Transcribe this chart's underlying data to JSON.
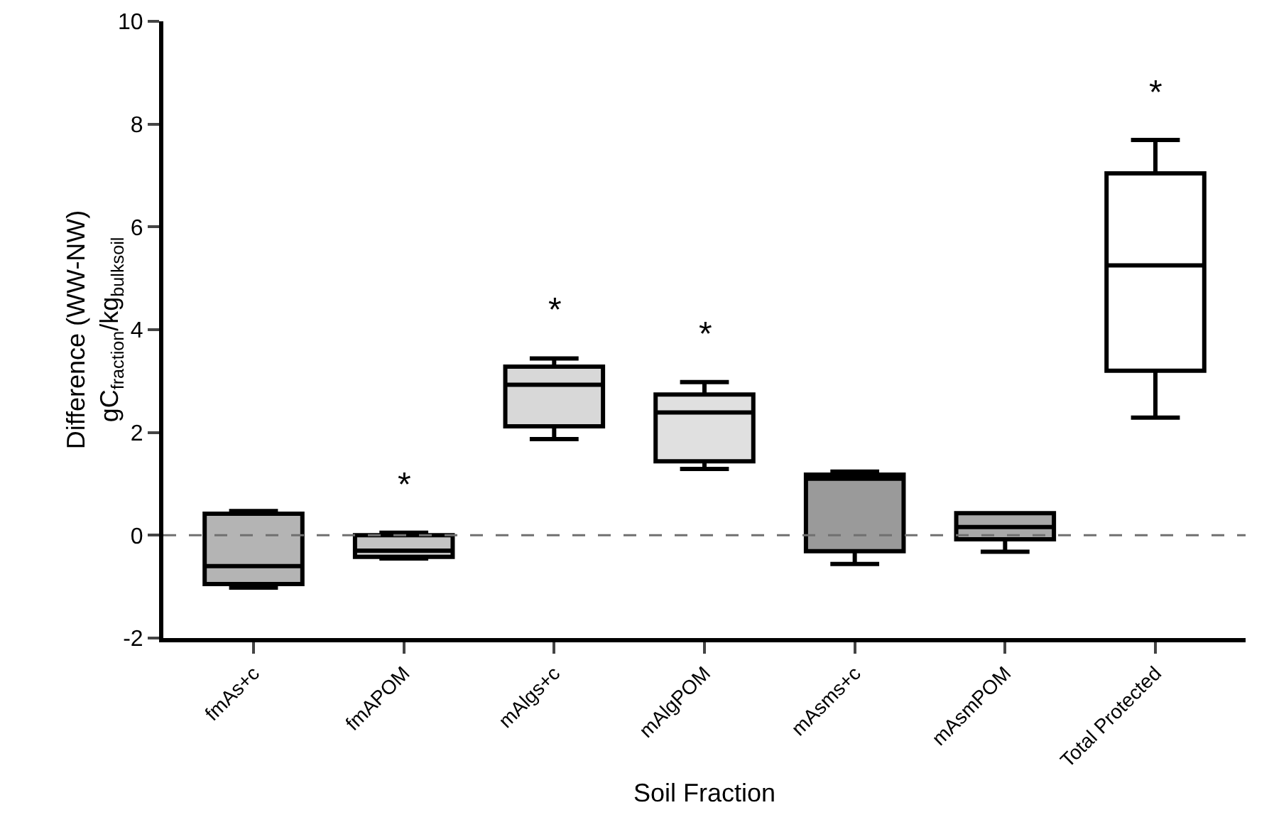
{
  "chart_data": {
    "type": "box",
    "xlabel": "Soil Fraction",
    "ylabel": "Difference (WW-NW)\ngC$_{fraction}$/kg$_{bulksoil}$",
    "categories": [
      "fmAs+c",
      "fmAPOM",
      "mAlgs+c",
      "mAlgPOM",
      "mAsms+c",
      "mAsmPOM",
      "Total Protected"
    ],
    "boxes": [
      {
        "low": -1.02,
        "q1": -0.95,
        "median": -0.6,
        "q3": 0.42,
        "high": 0.47
      },
      {
        "low": -0.45,
        "q1": -0.42,
        "median": -0.3,
        "q3": 0.0,
        "high": 0.05
      },
      {
        "low": 1.87,
        "q1": 2.12,
        "median": 2.93,
        "q3": 3.28,
        "high": 3.44
      },
      {
        "low": 1.29,
        "q1": 1.44,
        "median": 2.39,
        "q3": 2.74,
        "high": 2.98
      },
      {
        "low": -0.56,
        "q1": -0.31,
        "median": 1.1,
        "q3": 1.18,
        "high": 1.24
      },
      {
        "low": -0.32,
        "q1": -0.08,
        "median": 0.16,
        "q3": 0.43,
        "high": 0.43
      },
      {
        "low": 2.29,
        "q1": 3.2,
        "median": 5.25,
        "q3": 7.04,
        "high": 7.69
      }
    ],
    "colors": [
      "#b4b4b4",
      "#c4c4c4",
      "#d8d8d8",
      "#e0e0e0",
      "#9a9a9a",
      "#a8a8a8",
      "#ffffff"
    ],
    "ylim": [
      -2,
      10
    ],
    "yticks": [
      -2,
      0,
      2,
      4,
      6,
      8,
      10
    ],
    "grid": false,
    "ref_lines": [
      {
        "axis": "y",
        "value": 0,
        "color": "#707070",
        "line_style": "dashed"
      }
    ],
    "annotations": [
      {
        "text": "*",
        "x": "fmAPOM",
        "y": 0.05
      },
      {
        "text": "*",
        "x": "mAlgs+c",
        "y": 3.44
      },
      {
        "text": "*",
        "x": "mAlgPOM",
        "y": 2.98
      },
      {
        "text": "*",
        "x": "Total Protected",
        "y": 7.69
      }
    ]
  }
}
